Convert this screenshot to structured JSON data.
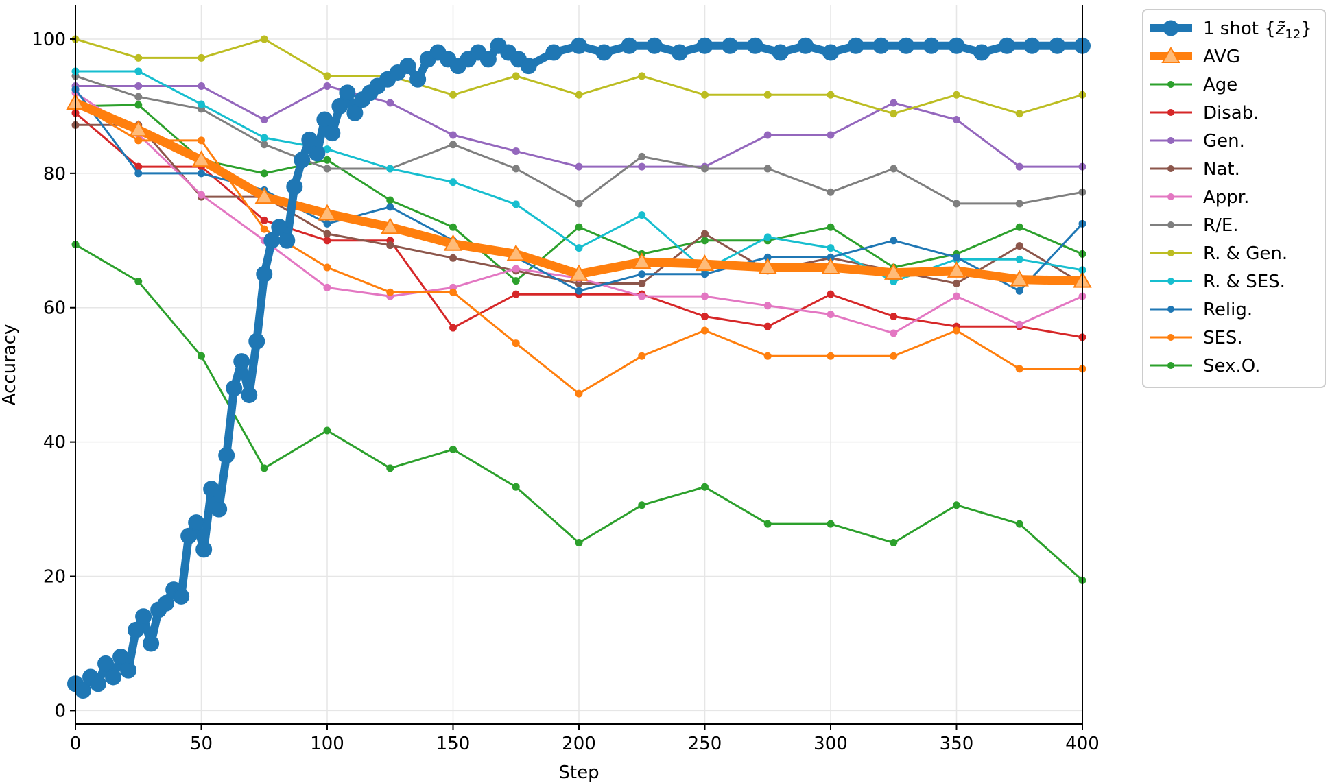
{
  "chart_data": {
    "type": "line",
    "xlabel": "Step",
    "ylabel": "Accuracy",
    "xlim": [
      0,
      400
    ],
    "ylim": [
      -2,
      105
    ],
    "x_ticks": [
      0,
      50,
      100,
      150,
      200,
      250,
      300,
      350,
      400
    ],
    "y_ticks": [
      0,
      20,
      40,
      60,
      80,
      100
    ],
    "x_tick_labels": [
      "0",
      "50",
      "100",
      "150",
      "200",
      "250",
      "300",
      "350",
      "400"
    ],
    "y_tick_labels": [
      "0",
      "20",
      "40",
      "60",
      "80",
      "100"
    ],
    "grid": true,
    "legend_position": "outside-right-top",
    "highlight": {
      "name": "1 shot {z̃12}",
      "label_plain": "1 shot {",
      "label_sym": "z̃",
      "label_sub": "12",
      "label_close": "}",
      "color": "#1f77b4",
      "x": [
        0,
        3,
        6,
        9,
        12,
        15,
        18,
        21,
        24,
        27,
        30,
        33,
        36,
        39,
        42,
        45,
        48,
        51,
        54,
        57,
        60,
        63,
        66,
        69,
        72,
        75,
        78,
        81,
        84,
        87,
        90,
        93,
        96,
        99,
        102,
        105,
        108,
        111,
        114,
        117,
        120,
        124,
        128,
        132,
        136,
        140,
        144,
        148,
        152,
        156,
        160,
        164,
        168,
        172,
        176,
        180,
        190,
        200,
        210,
        220,
        230,
        240,
        250,
        260,
        270,
        280,
        290,
        300,
        310,
        320,
        330,
        340,
        350,
        360,
        370,
        380,
        390,
        400
      ],
      "values": [
        4,
        3,
        5,
        4,
        7,
        5,
        8,
        6,
        12,
        14,
        10,
        15,
        16,
        18,
        17,
        26,
        28,
        24,
        33,
        30,
        38,
        48,
        52,
        47,
        55,
        65,
        70,
        72,
        70,
        78,
        82,
        85,
        83,
        88,
        86,
        90,
        92,
        89,
        91,
        92,
        93,
        94,
        95,
        96,
        94,
        97,
        98,
        97,
        96,
        97,
        98,
        97,
        99,
        98,
        97,
        96,
        98,
        99,
        98,
        99,
        99,
        98,
        99,
        99,
        99,
        98,
        99,
        98,
        99,
        99,
        99,
        99,
        99,
        98,
        99,
        99,
        99,
        99
      ]
    },
    "avg": {
      "name": "AVG",
      "color": "#ff7f0e",
      "x": [
        0,
        25,
        50,
        75,
        100,
        125,
        150,
        175,
        200,
        225,
        250,
        275,
        300,
        325,
        350,
        375,
        400
      ],
      "values": [
        90.5,
        86.5,
        82,
        76.5,
        74,
        72,
        69.5,
        68,
        65,
        66.8,
        66.5,
        66,
        66,
        65.2,
        65.5,
        64.2,
        64
      ]
    },
    "x": [
      0,
      25,
      50,
      75,
      100,
      125,
      150,
      175,
      200,
      225,
      250,
      275,
      300,
      325,
      350,
      375,
      400
    ],
    "series": [
      {
        "name": "Age",
        "color": "#2ca02c",
        "values": [
          90,
          90.2,
          82,
          80,
          82,
          76,
          72,
          64,
          72,
          68,
          70,
          70,
          72,
          66,
          68,
          72,
          68
        ]
      },
      {
        "name": "Disab.",
        "color": "#d62728",
        "values": [
          89,
          81,
          81,
          73,
          70,
          70,
          57,
          62,
          62,
          62,
          58.7,
          57.2,
          62,
          58.7,
          57.2,
          57.2,
          55.6
        ]
      },
      {
        "name": "Gen.",
        "color": "#9467bd",
        "values": [
          93,
          93,
          93,
          88,
          93,
          90.5,
          85.7,
          83.3,
          81,
          81,
          81,
          85.7,
          85.7,
          90.5,
          88,
          81,
          81
        ]
      },
      {
        "name": "Nat.",
        "color": "#8c564b",
        "values": [
          87.2,
          87.2,
          76.5,
          76.5,
          71,
          69.3,
          67.4,
          65.5,
          63.6,
          63.6,
          71,
          65.5,
          67.4,
          65.5,
          63.6,
          69.2,
          63.6
        ]
      },
      {
        "name": "Appr.",
        "color": "#e377c2",
        "values": [
          92,
          85.8,
          76.8,
          70,
          63,
          61.7,
          63,
          65.8,
          64.4,
          61.7,
          61.7,
          60.3,
          59,
          56.2,
          61.7,
          57.5,
          61.7
        ]
      },
      {
        "name": "R/E.",
        "color": "#7f7f7f",
        "values": [
          94.5,
          91.4,
          89.6,
          84.3,
          80.7,
          80.7,
          84.3,
          80.7,
          75.5,
          82.5,
          80.7,
          80.7,
          77.2,
          80.7,
          75.5,
          75.5,
          77.2
        ]
      },
      {
        "name": "R. & Gen.",
        "color": "#bcbd22",
        "values": [
          100,
          97.2,
          97.2,
          100,
          94.5,
          94.5,
          91.7,
          94.5,
          91.7,
          94.5,
          91.7,
          91.7,
          91.7,
          88.9,
          91.7,
          88.9,
          91.7
        ]
      },
      {
        "name": "R. & SES.",
        "color": "#17becf",
        "values": [
          95.2,
          95.2,
          90.3,
          85.3,
          83.6,
          80.7,
          78.7,
          75.4,
          68.9,
          73.8,
          65.6,
          70.5,
          68.9,
          63.9,
          67.2,
          67.2,
          65.6
        ]
      },
      {
        "name": "Relig.",
        "color": "#1f77b4",
        "values": [
          92.5,
          80,
          80,
          77.5,
          72.5,
          75,
          70,
          67.5,
          62.5,
          65,
          65,
          67.5,
          67.5,
          70,
          67.5,
          62.5,
          72.5
        ]
      },
      {
        "name": "SES.",
        "color": "#ff7f0e",
        "values": [
          90.5,
          84.9,
          84.9,
          71.7,
          66,
          62.3,
          62.3,
          54.7,
          47.2,
          52.8,
          56.6,
          52.8,
          52.8,
          52.8,
          56.6,
          50.9,
          50.9
        ]
      },
      {
        "name": "Sex.O.",
        "color": "#2ca02c",
        "values": [
          69.4,
          63.9,
          52.8,
          36.1,
          41.7,
          36.1,
          38.9,
          33.3,
          25,
          30.6,
          33.3,
          27.8,
          27.8,
          25,
          30.6,
          27.8,
          19.4
        ]
      }
    ]
  }
}
